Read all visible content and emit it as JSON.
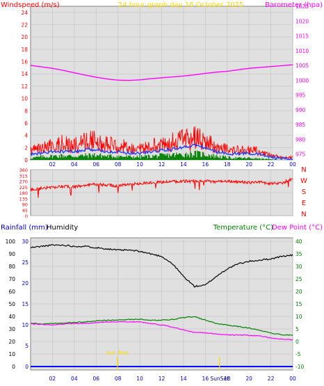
{
  "chart_data": [
    {
      "type": "line",
      "title": "24 hour graph day 16 October 2025",
      "left_axis_label": "Windspeed (m/s)",
      "right_axis_label": "Barometer (hpa)",
      "left_ticks": [
        0,
        2,
        4,
        6,
        8,
        10,
        12,
        14,
        16,
        18,
        20,
        22,
        24
      ],
      "right_ticks": [
        975,
        980,
        985,
        990,
        995,
        1000,
        1005,
        1010,
        1015,
        1020,
        1025
      ],
      "x_ticks": [
        "02",
        "04",
        "06",
        "08",
        "10",
        "12",
        "14",
        "16",
        "18",
        "20",
        "22",
        "00"
      ],
      "hours": [
        0,
        1,
        2,
        3,
        4,
        5,
        6,
        7,
        8,
        9,
        10,
        11,
        12,
        13,
        14,
        15,
        16,
        17,
        18,
        19,
        20,
        21,
        22,
        23,
        24
      ],
      "series": [
        {
          "name": "Windspeed (m/s)",
          "axis": "left",
          "color": "#ff0000",
          "gust_values": [
            2.2,
            3.0,
            3.5,
            4.2,
            4.0,
            4.5,
            5.0,
            3.8,
            3.6,
            3.3,
            2.8,
            3.5,
            4.5,
            4.5,
            5.2,
            5.5,
            5.0,
            3.2,
            2.6,
            2.3,
            2.5,
            2.0,
            1.2,
            0.8,
            0.6
          ],
          "avg_values": [
            1.6,
            1.9,
            2.0,
            2.3,
            2.1,
            2.5,
            2.8,
            2.2,
            2.0,
            1.8,
            1.6,
            2.0,
            2.5,
            2.6,
            3.0,
            3.2,
            2.8,
            2.0,
            1.6,
            1.5,
            1.6,
            1.2,
            0.7,
            0.4,
            0.3
          ]
        },
        {
          "name": "Average wind",
          "axis": "left",
          "color": "#1f3fff",
          "values": [
            0.9,
            1.1,
            1.3,
            1.4,
            1.3,
            1.6,
            1.7,
            1.4,
            1.3,
            1.2,
            1.1,
            1.3,
            1.6,
            1.7,
            2.1,
            2.4,
            2.0,
            1.3,
            1.1,
            1.0,
            1.1,
            0.9,
            0.5,
            0.2,
            0.1
          ]
        },
        {
          "name": "Minimum wind",
          "axis": "left",
          "color": "#008000",
          "values": [
            0.3,
            0.5,
            0.6,
            0.7,
            0.6,
            0.7,
            0.8,
            0.6,
            0.6,
            0.5,
            0.5,
            0.6,
            0.7,
            0.8,
            0.9,
            1.0,
            0.9,
            0.6,
            0.4,
            0.3,
            0.3,
            0.2,
            0.1,
            0.0,
            0.0
          ]
        },
        {
          "name": "Barometer (hpa)",
          "axis": "right",
          "color": "#ff00ff",
          "values": [
            1005.0,
            1004.5,
            1004.0,
            1003.3,
            1002.5,
            1001.7,
            1001.0,
            1000.4,
            1000.0,
            999.9,
            1000.1,
            1000.5,
            1000.8,
            1001.1,
            1001.4,
            1001.8,
            1002.3,
            1002.7,
            1003.0,
            1003.5,
            1004.0,
            1004.3,
            1004.6,
            1004.9,
            1005.2
          ]
        }
      ]
    },
    {
      "type": "line",
      "title": "Wind direction",
      "left_ticks": [
        0,
        45,
        90,
        135,
        180,
        225,
        270,
        315,
        360
      ],
      "right_letters": [
        "N",
        "W",
        "S",
        "E",
        "N"
      ],
      "x_ticks": [
        "02",
        "04",
        "06",
        "08",
        "10",
        "12",
        "14",
        "16",
        "18",
        "20",
        "22",
        "00"
      ],
      "hours": [
        0,
        1,
        2,
        3,
        4,
        5,
        6,
        7,
        8,
        9,
        10,
        11,
        12,
        13,
        14,
        15,
        16,
        17,
        18,
        19,
        20,
        21,
        22,
        23,
        24
      ],
      "series": [
        {
          "name": "Wind direction",
          "color": "#ff0000",
          "values": [
            200,
            215,
            222,
            230,
            225,
            238,
            245,
            240,
            232,
            248,
            252,
            258,
            262,
            266,
            270,
            268,
            272,
            265,
            270,
            265,
            258,
            262,
            252,
            255,
            290
          ]
        }
      ]
    },
    {
      "type": "line",
      "title": "",
      "left_label_1": "Rainfall (mm)",
      "left_label_2": "Humidity",
      "right_label_1": "Temperature (°C)",
      "right_label_2": "Dew Point (°C)",
      "humidity_ticks": [
        0,
        10,
        20,
        30,
        40,
        50,
        60,
        70,
        80,
        90,
        100
      ],
      "rain_ticks": [
        0,
        5,
        10,
        15,
        20,
        25,
        30
      ],
      "temp_ticks": [
        -10,
        -5,
        0,
        5,
        10,
        15,
        20,
        25,
        30,
        35,
        40
      ],
      "x_ticks": [
        "02",
        "04",
        "06",
        "08",
        "10",
        "12",
        "14",
        "16",
        "18",
        "20",
        "22",
        "00"
      ],
      "sunrise_label": "Sun Rise",
      "sunrise_hour": 7.95,
      "sunset_label": "SunSet",
      "sunset_hour": 17.3,
      "hours": [
        0,
        1,
        2,
        3,
        4,
        5,
        6,
        7,
        8,
        9,
        10,
        11,
        12,
        13,
        14,
        15,
        16,
        17,
        18,
        19,
        20,
        21,
        22,
        23,
        24
      ],
      "series": [
        {
          "name": "Humidity",
          "axis": "humidity",
          "color": "#000000",
          "values": [
            95,
            96,
            97,
            97,
            96,
            96,
            95,
            94,
            93,
            93,
            92,
            90,
            88,
            82,
            72,
            64,
            65,
            72,
            78,
            82,
            84,
            85,
            86,
            88,
            89
          ]
        },
        {
          "name": "Temperature (°C)",
          "axis": "temp",
          "color": "#008000",
          "values": [
            7.4,
            7.0,
            7.2,
            7.4,
            7.6,
            7.8,
            8.2,
            8.5,
            8.6,
            8.8,
            8.9,
            8.4,
            8.6,
            8.8,
            9.5,
            10.0,
            8.5,
            7.2,
            6.5,
            6.0,
            5.4,
            4.5,
            3.4,
            2.7,
            2.5
          ]
        },
        {
          "name": "Dew Point (°C)",
          "axis": "temp",
          "color": "#ff00ff",
          "values": [
            7.0,
            6.8,
            6.6,
            7.0,
            7.1,
            7.2,
            7.5,
            7.8,
            7.8,
            7.9,
            7.8,
            7.2,
            6.6,
            5.8,
            4.6,
            3.6,
            3.4,
            3.0,
            2.6,
            2.6,
            2.5,
            2.2,
            1.4,
            0.9,
            0.7
          ]
        },
        {
          "name": "Rainfall (mm)",
          "axis": "rain",
          "color": "#0000ff",
          "values": [
            0,
            0,
            0,
            0,
            0,
            0,
            0,
            0,
            0,
            0,
            0,
            0,
            0,
            0,
            0,
            0,
            0,
            0,
            0,
            0,
            0,
            0,
            0,
            0,
            0
          ]
        }
      ]
    }
  ]
}
